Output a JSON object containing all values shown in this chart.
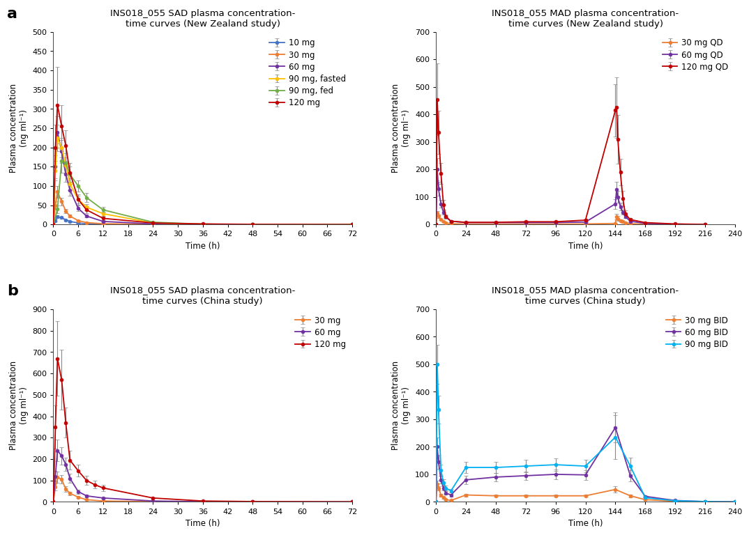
{
  "panel_a_sad_nz": {
    "title": "INS018_055 SAD plasma concentration-\ntime curves (New Zealand study)",
    "xlabel": "Time (h)",
    "ylabel": "Plasma concentration\n(ng ml⁻¹)",
    "ylim": [
      0,
      500
    ],
    "yticks": [
      0,
      50,
      100,
      150,
      200,
      250,
      300,
      350,
      400,
      450,
      500
    ],
    "xticks": [
      0,
      6,
      12,
      18,
      24,
      30,
      36,
      42,
      48,
      54,
      60,
      66,
      72
    ],
    "series": [
      {
        "label": "10 mg",
        "color": "#4472C4",
        "x": [
          0,
          0.5,
          1,
          2,
          3,
          4,
          6,
          8,
          12,
          24,
          36,
          48,
          72
        ],
        "y": [
          0,
          10,
          20,
          18,
          12,
          8,
          4,
          2,
          1,
          0,
          0,
          0,
          0
        ],
        "yerr": [
          0,
          3,
          4,
          3,
          2,
          2,
          1,
          0.5,
          0.3,
          0,
          0,
          0,
          0
        ]
      },
      {
        "label": "30 mg",
        "color": "#ED7D31",
        "x": [
          0,
          0.5,
          1,
          2,
          3,
          4,
          6,
          8,
          12,
          24,
          36,
          48,
          72
        ],
        "y": [
          0,
          50,
          85,
          60,
          35,
          22,
          10,
          5,
          2,
          0.5,
          0,
          0,
          0
        ],
        "yerr": [
          0,
          10,
          15,
          10,
          6,
          4,
          2,
          1,
          0.5,
          0.2,
          0,
          0,
          0
        ]
      },
      {
        "label": "60 mg",
        "color": "#7030A0",
        "x": [
          0,
          0.5,
          1,
          2,
          3,
          4,
          6,
          8,
          12,
          24,
          36,
          48,
          72
        ],
        "y": [
          0,
          150,
          240,
          190,
          130,
          90,
          42,
          22,
          8,
          1.5,
          0,
          0,
          0
        ],
        "yerr": [
          0,
          30,
          40,
          30,
          20,
          15,
          8,
          4,
          2,
          0.5,
          0,
          0,
          0
        ]
      },
      {
        "label": "90 mg, fasted",
        "color": "#FFC000",
        "x": [
          0,
          0.5,
          1,
          2,
          3,
          4,
          6,
          8,
          12,
          24,
          36,
          48,
          72
        ],
        "y": [
          0,
          140,
          225,
          200,
          155,
          105,
          65,
          45,
          28,
          4,
          1,
          0,
          0
        ],
        "yerr": [
          0,
          25,
          35,
          25,
          20,
          15,
          10,
          8,
          5,
          1,
          0.5,
          0,
          0
        ]
      },
      {
        "label": "90 mg, fed",
        "color": "#70AD47",
        "x": [
          0,
          1,
          2,
          3,
          4,
          6,
          8,
          12,
          24,
          36,
          48,
          72
        ],
        "y": [
          0,
          40,
          165,
          160,
          130,
          100,
          70,
          38,
          6,
          1,
          0,
          0
        ],
        "yerr": [
          0,
          10,
          30,
          25,
          20,
          15,
          12,
          7,
          1.5,
          0.5,
          0,
          0
        ]
      },
      {
        "label": "120 mg",
        "color": "#C00000",
        "x": [
          0,
          0.5,
          1,
          2,
          3,
          4,
          6,
          8,
          12,
          24,
          36,
          48,
          72
        ],
        "y": [
          0,
          200,
          310,
          255,
          205,
          135,
          65,
          38,
          16,
          4,
          1.5,
          0.5,
          0
        ],
        "yerr": [
          0,
          60,
          100,
          55,
          40,
          25,
          14,
          9,
          4,
          1.5,
          0.8,
          0.3,
          0
        ]
      }
    ]
  },
  "panel_a_mad_nz": {
    "title": "INS018_055 MAD plasma concentration-\ntime curves (New Zealand study)",
    "xlabel": "Time (h)",
    "ylabel": "Plasma concentration\n(ng ml⁻¹)",
    "ylim": [
      0,
      700
    ],
    "yticks": [
      0,
      100,
      200,
      300,
      400,
      500,
      600,
      700
    ],
    "xticks": [
      0,
      24,
      48,
      72,
      96,
      120,
      144,
      168,
      192,
      216,
      240
    ],
    "series": [
      {
        "label": "30 mg QD",
        "color": "#ED7D31",
        "x": [
          0,
          1,
          2,
          4,
          6,
          8,
          12,
          24,
          48,
          72,
          96,
          120,
          144,
          145,
          146,
          148,
          150,
          152,
          156,
          168,
          192,
          216
        ],
        "y": [
          0,
          40,
          30,
          18,
          10,
          6,
          3,
          1.5,
          1.5,
          1.5,
          1.5,
          2,
          4,
          28,
          22,
          14,
          10,
          6,
          3,
          1,
          0.5,
          0
        ],
        "yerr": [
          0,
          8,
          6,
          3,
          2,
          1,
          0.5,
          0.3,
          0.3,
          0.3,
          0.3,
          0.5,
          1,
          10,
          8,
          4,
          3,
          2,
          1,
          0.3,
          0.2,
          0
        ]
      },
      {
        "label": "60 mg QD",
        "color": "#7030A0",
        "x": [
          0,
          1,
          2,
          4,
          6,
          8,
          12,
          24,
          48,
          72,
          96,
          120,
          144,
          145,
          146,
          148,
          150,
          152,
          156,
          168,
          192,
          216
        ],
        "y": [
          0,
          200,
          130,
          75,
          45,
          28,
          12,
          7,
          7,
          7,
          7,
          9,
          75,
          128,
          100,
          65,
          45,
          28,
          12,
          4,
          1.5,
          0
        ],
        "yerr": [
          0,
          40,
          25,
          14,
          9,
          5,
          2.5,
          1.5,
          1.5,
          1.5,
          1.5,
          2,
          18,
          28,
          22,
          14,
          9,
          5,
          3,
          1,
          0.5,
          0
        ]
      },
      {
        "label": "120 mg QD",
        "color": "#C00000",
        "x": [
          0,
          1,
          2,
          4,
          6,
          8,
          12,
          24,
          48,
          72,
          96,
          120,
          144,
          145,
          146,
          148,
          150,
          152,
          156,
          168,
          192,
          216
        ],
        "y": [
          0,
          455,
          335,
          185,
          72,
          28,
          12,
          8,
          8,
          10,
          10,
          16,
          415,
          425,
          310,
          190,
          95,
          38,
          18,
          7,
          2,
          0.5
        ],
        "yerr": [
          0,
          130,
          78,
          38,
          18,
          7,
          3,
          2,
          2,
          2.5,
          2.5,
          4,
          95,
          110,
          88,
          48,
          28,
          14,
          6,
          2.5,
          1,
          0.3
        ]
      }
    ]
  },
  "panel_b_sad_cn": {
    "title": "INS018_055 SAD plasma concentration-\ntime curves (China study)",
    "xlabel": "Time (h)",
    "ylabel": "Plasma concentration\n(ng ml⁻¹)",
    "ylim": [
      0,
      900
    ],
    "yticks": [
      0,
      100,
      200,
      300,
      400,
      500,
      600,
      700,
      800,
      900
    ],
    "xticks": [
      0,
      6,
      12,
      18,
      24,
      30,
      36,
      42,
      48,
      54,
      60,
      66,
      72
    ],
    "series": [
      {
        "label": "30 mg",
        "color": "#ED7D31",
        "x": [
          0,
          0.5,
          1,
          2,
          3,
          4,
          6,
          8,
          12,
          24,
          36,
          48,
          72
        ],
        "y": [
          0,
          70,
          115,
          105,
          60,
          40,
          22,
          10,
          4,
          1,
          0,
          0,
          0
        ],
        "yerr": [
          0,
          15,
          25,
          20,
          12,
          8,
          4,
          2,
          1,
          0.3,
          0,
          0,
          0
        ]
      },
      {
        "label": "60 mg",
        "color": "#7030A0",
        "x": [
          0,
          0.5,
          1,
          2,
          3,
          4,
          6,
          8,
          12,
          24,
          36,
          48,
          72
        ],
        "y": [
          0,
          120,
          240,
          215,
          175,
          110,
          48,
          28,
          18,
          4,
          0.8,
          0,
          0
        ],
        "yerr": [
          0,
          25,
          50,
          40,
          30,
          20,
          10,
          6,
          4,
          1,
          0.3,
          0,
          0
        ]
      },
      {
        "label": "120 mg",
        "color": "#C00000",
        "x": [
          0,
          0.5,
          1,
          2,
          3,
          4,
          6,
          8,
          10,
          12,
          24,
          36,
          48,
          72
        ],
        "y": [
          0,
          350,
          670,
          570,
          370,
          195,
          145,
          100,
          80,
          65,
          18,
          4,
          1.5,
          0
        ],
        "yerr": [
          0,
          100,
          175,
          140,
          70,
          45,
          28,
          22,
          18,
          14,
          4,
          1,
          0.5,
          0
        ]
      }
    ]
  },
  "panel_b_mad_cn": {
    "title": "INS018_055 MAD plasma concentration-\ntime curves (China study)",
    "xlabel": "Time (h)",
    "ylabel": "Plasma concentration\n(ng ml⁻¹)",
    "ylim": [
      0,
      700
    ],
    "yticks": [
      0,
      100,
      200,
      300,
      400,
      500,
      600,
      700
    ],
    "xticks": [
      0,
      24,
      48,
      72,
      96,
      120,
      144,
      168,
      192,
      216,
      240
    ],
    "series": [
      {
        "label": "30 mg BID",
        "color": "#ED7D31",
        "x": [
          0,
          1,
          2,
          4,
          6,
          8,
          12,
          24,
          48,
          72,
          96,
          120,
          144,
          156,
          168,
          192,
          216,
          240
        ],
        "y": [
          0,
          65,
          50,
          25,
          15,
          8,
          5,
          25,
          22,
          22,
          22,
          22,
          45,
          22,
          8,
          2,
          0.5,
          0
        ],
        "yerr": [
          0,
          12,
          8,
          5,
          3,
          1.5,
          1,
          5,
          4,
          4,
          4,
          4,
          12,
          5,
          2,
          0.5,
          0.2,
          0
        ]
      },
      {
        "label": "60 mg BID",
        "color": "#7030A0",
        "x": [
          0,
          1,
          2,
          4,
          6,
          8,
          12,
          24,
          48,
          72,
          96,
          120,
          144,
          156,
          168,
          192,
          216,
          240
        ],
        "y": [
          0,
          200,
          145,
          80,
          50,
          32,
          25,
          80,
          90,
          95,
          100,
          98,
          270,
          95,
          20,
          5,
          1,
          0
        ],
        "yerr": [
          0,
          35,
          25,
          14,
          9,
          6,
          5,
          15,
          16,
          16,
          18,
          18,
          55,
          20,
          5,
          1.2,
          0.4,
          0
        ]
      },
      {
        "label": "90 mg BID",
        "color": "#00B0F0",
        "x": [
          0,
          1,
          2,
          4,
          6,
          8,
          12,
          24,
          48,
          72,
          96,
          120,
          144,
          156,
          168,
          192,
          216,
          240
        ],
        "y": [
          0,
          500,
          335,
          115,
          70,
          50,
          40,
          125,
          125,
          130,
          135,
          130,
          235,
          130,
          15,
          4,
          1,
          0
        ],
        "yerr": [
          0,
          70,
          50,
          20,
          12,
          9,
          7,
          20,
          20,
          22,
          22,
          22,
          80,
          30,
          4,
          1,
          0.3,
          0
        ]
      }
    ]
  },
  "background_color": "#ffffff",
  "marker": "o",
  "markersize": 3.5,
  "linewidth": 1.3,
  "capsize": 2,
  "elinewidth": 0.8,
  "legend_fontsize": 8.5,
  "title_fontsize": 9.5,
  "label_fontsize": 8.5,
  "tick_fontsize": 8
}
